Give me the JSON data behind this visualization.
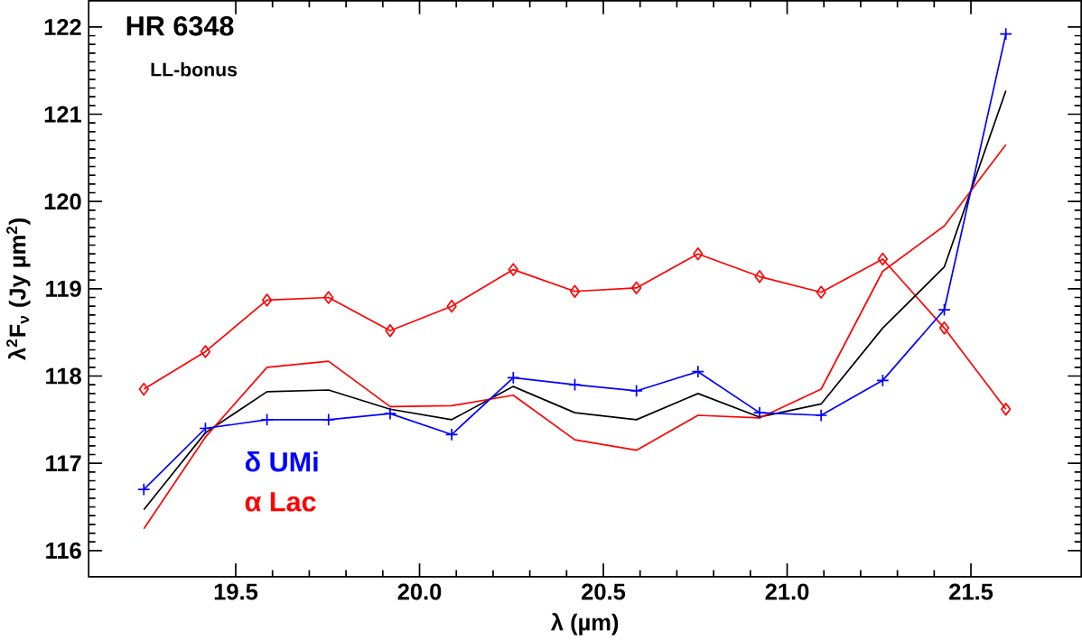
{
  "chart_data": {
    "type": "line",
    "title": "HR 6348",
    "subtitle": "LL-bonus",
    "xlabel": "λ (µm)",
    "ylabel": "λ$^{2}$F$_{ν}$ (Jy µm$^{2}$)",
    "x": [
      19.25,
      19.4175,
      19.585,
      19.7525,
      19.92,
      20.0875,
      20.255,
      20.4225,
      20.59,
      20.7575,
      20.925,
      21.0925,
      21.26,
      21.4275,
      21.595
    ],
    "series": [
      {
        "color": "#ff0000",
        "marker": "diamond",
        "values": [
          117.85,
          118.28,
          118.87,
          118.9,
          118.52,
          118.8,
          119.22,
          118.97,
          119.01,
          119.4,
          119.14,
          118.96,
          119.34,
          118.55,
          117.62
        ]
      },
      {
        "color": "#000000",
        "marker": "none",
        "values": [
          116.47,
          117.35,
          117.82,
          117.84,
          117.62,
          117.5,
          117.88,
          117.58,
          117.5,
          117.8,
          117.53,
          117.68,
          118.55,
          119.25,
          121.27
        ]
      },
      {
        "color": "#ff0000",
        "marker": "none",
        "name": "α Lac",
        "values": [
          116.25,
          117.3,
          118.1,
          118.17,
          117.65,
          117.66,
          117.78,
          117.27,
          117.15,
          117.55,
          117.52,
          117.85,
          119.2,
          119.72,
          120.65
        ]
      },
      {
        "color": "#0000ff",
        "marker": "cross",
        "name": "δ UMi",
        "values": [
          116.7,
          117.4,
          117.5,
          117.5,
          117.57,
          117.33,
          117.98,
          117.9,
          117.83,
          118.05,
          117.58,
          117.55,
          117.95,
          118.76,
          121.92
        ]
      }
    ],
    "xlim": [
      19.1,
      21.8
    ],
    "ylim": [
      115.7,
      122.3
    ],
    "xticks": [
      19.5,
      {
        "value": 20.0,
        "label": "20.0"
      },
      20.5,
      {
        "value": 21.0,
        "label": "21.0"
      },
      21.5
    ],
    "yticks": [
      116,
      117,
      118,
      119,
      120,
      121,
      122
    ],
    "legend": "bottom left",
    "grid": false,
    "line_style": "solid"
  }
}
